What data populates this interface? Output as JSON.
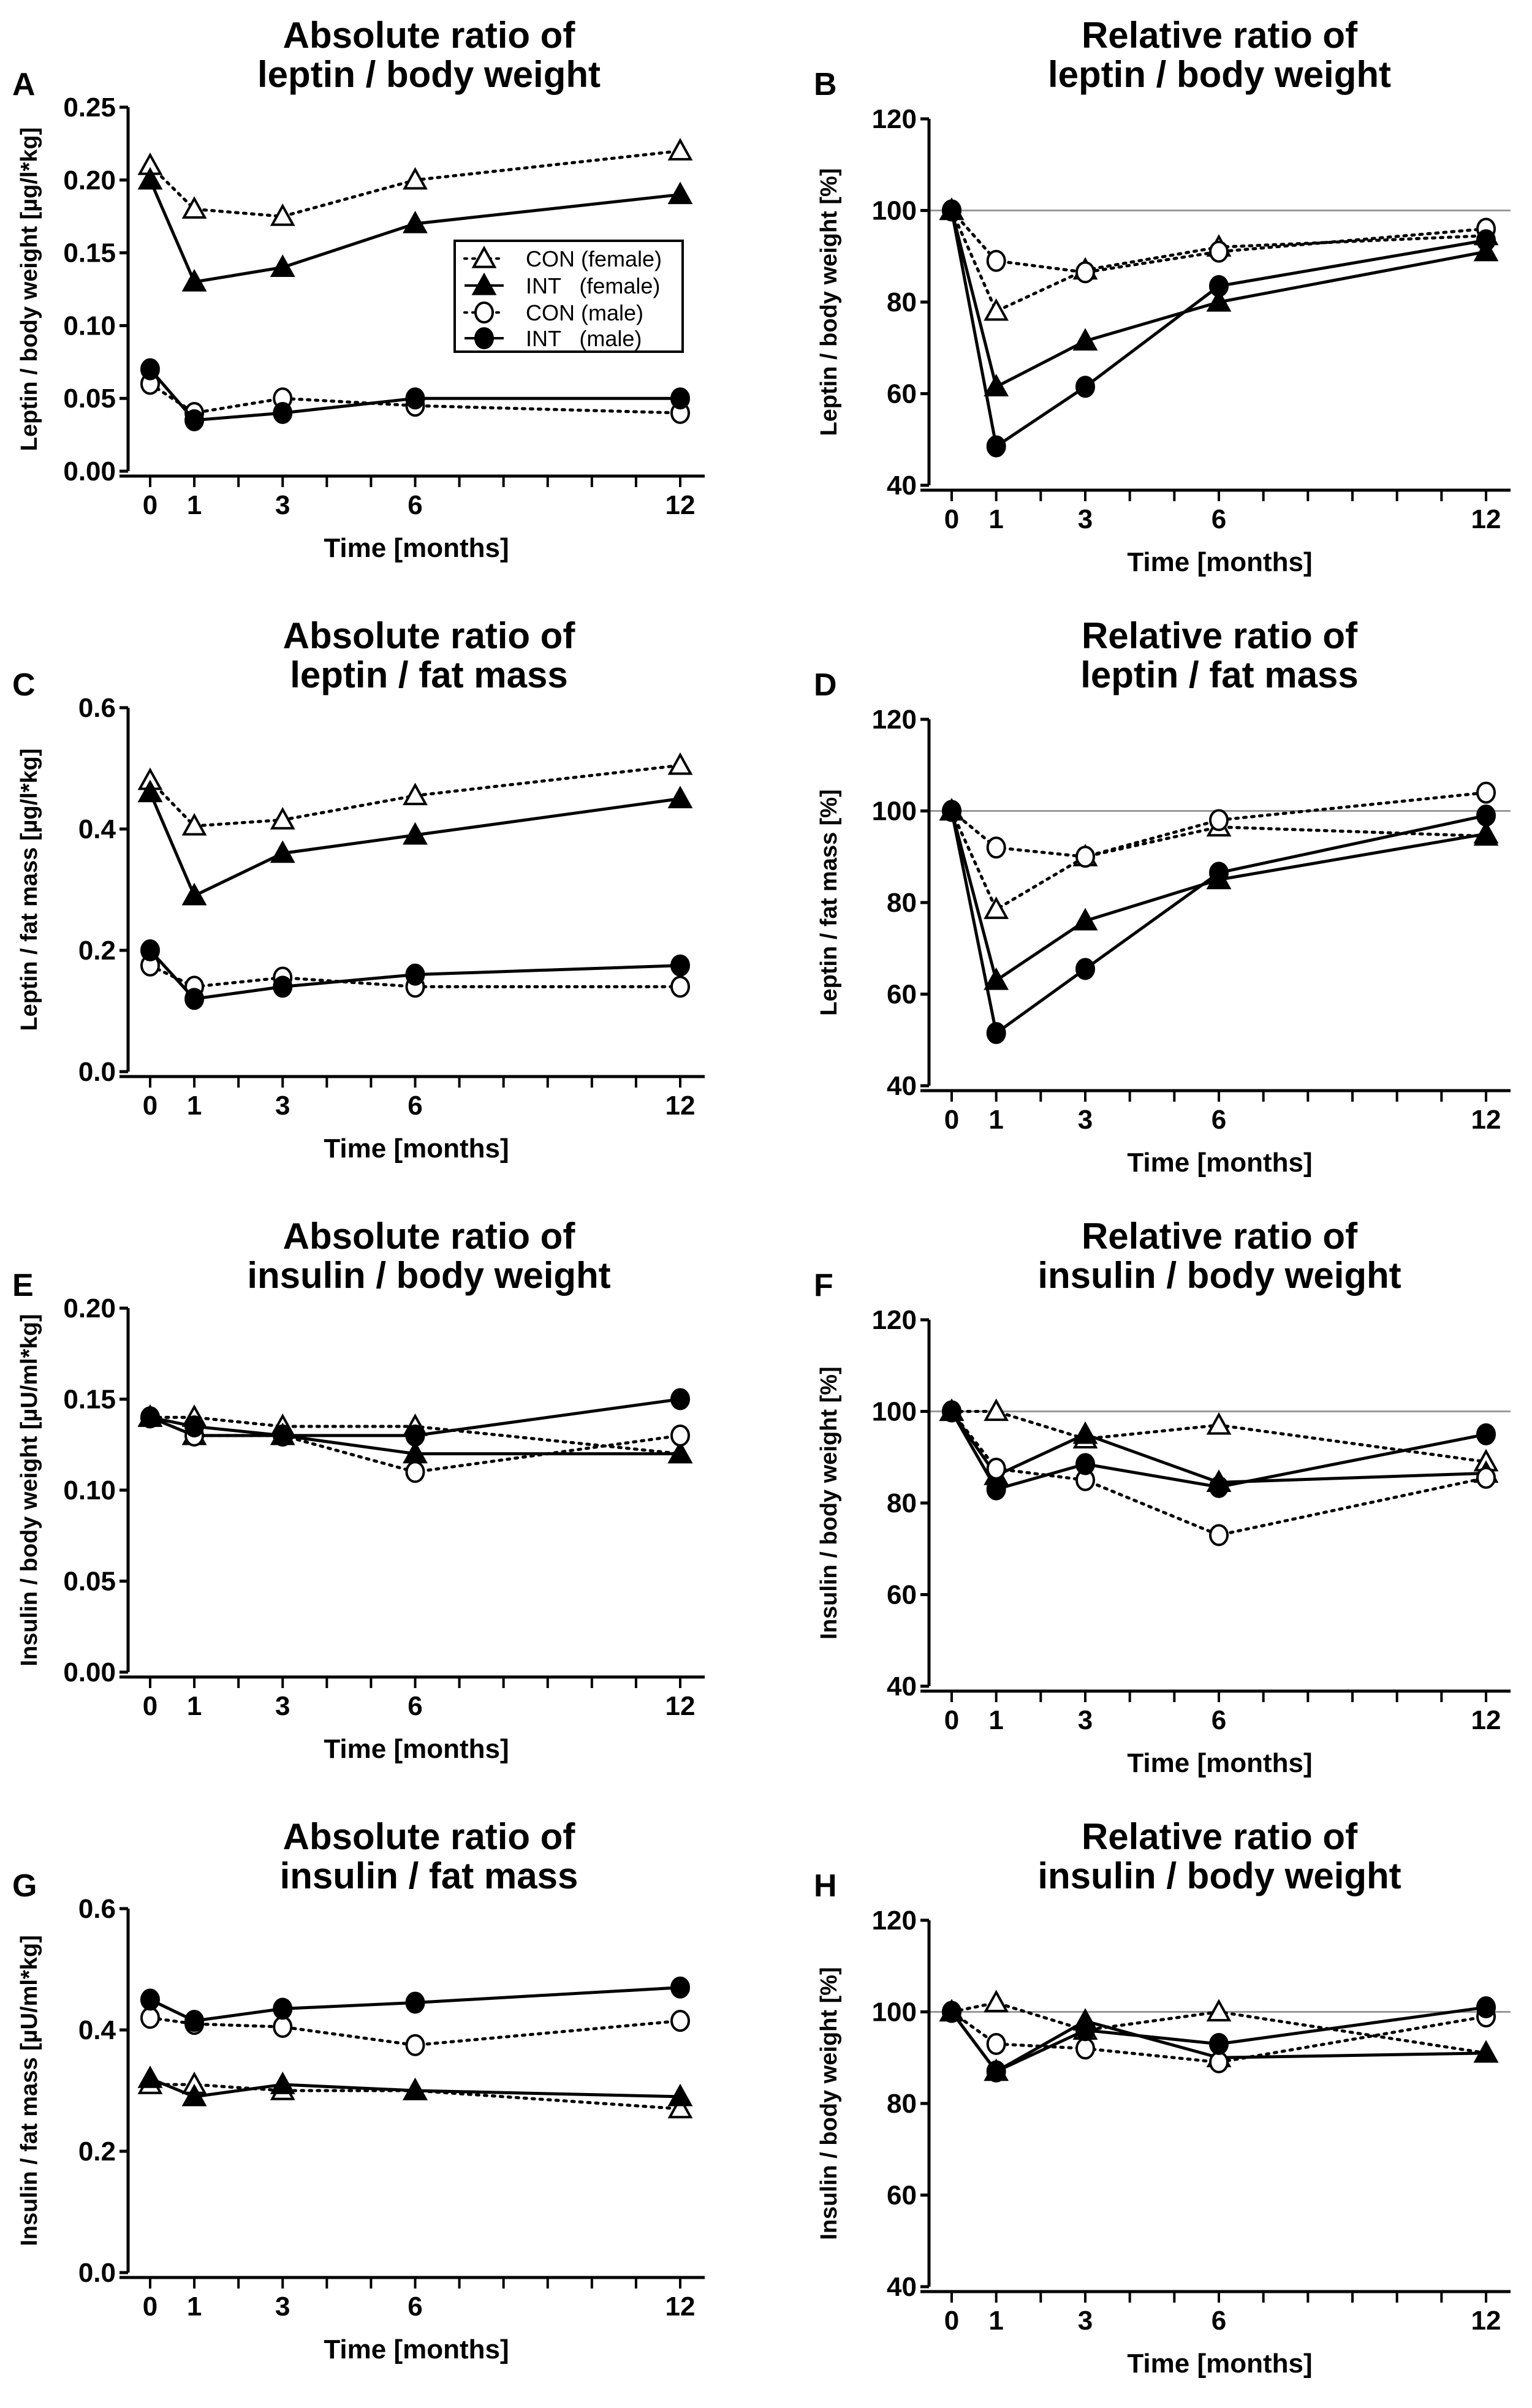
{
  "legend": [
    "CON (female)",
    "INT   (female)",
    "CON (male)",
    "INT   (male)"
  ],
  "chart_data": [
    {
      "panel": "A",
      "type": "line",
      "title": [
        "Absolute ratio of",
        "leptin / body weight"
      ],
      "ylabel": "Leptin / body weight [µg/l*kg]",
      "xlabel": "Time [months]",
      "x": [
        0,
        1,
        3,
        6,
        12
      ],
      "xtick_labels": [
        "0",
        "1",
        "3",
        "6",
        "12"
      ],
      "ylim": [
        0,
        0.25
      ],
      "yticks": [
        0,
        0.05,
        0.1,
        0.15,
        0.2,
        0.25
      ],
      "ytick_labels": [
        "0.00",
        "0.05",
        "0.10",
        "0.15",
        "0.20",
        "0.25"
      ],
      "reference_line": null,
      "legend_position": "center-right",
      "series": [
        {
          "name": "CON (female)",
          "values": [
            0.21,
            0.18,
            0.175,
            0.2,
            0.22
          ]
        },
        {
          "name": "INT (female)",
          "values": [
            0.2,
            0.13,
            0.14,
            0.17,
            0.19
          ]
        },
        {
          "name": "CON (male)",
          "values": [
            0.06,
            0.04,
            0.05,
            0.045,
            0.04
          ]
        },
        {
          "name": "INT (male)",
          "values": [
            0.07,
            0.035,
            0.04,
            0.05,
            0.05
          ]
        }
      ]
    },
    {
      "panel": "B",
      "type": "line",
      "title": [
        "Relative ratio of",
        "leptin / body weight"
      ],
      "ylabel": "Leptin / body weight [%]",
      "xlabel": "Time [months]",
      "x": [
        0,
        1,
        3,
        6,
        12
      ],
      "xtick_labels": [
        "0",
        "1",
        "3",
        "6",
        "12"
      ],
      "ylim": [
        40,
        120
      ],
      "yticks": [
        40,
        60,
        80,
        100,
        120
      ],
      "ytick_labels": [
        "40",
        "60",
        "80",
        "100",
        "120"
      ],
      "reference_line": 100,
      "series": [
        {
          "name": "CON (female)",
          "values": [
            100,
            78,
            87,
            92,
            94.5
          ]
        },
        {
          "name": "INT (female)",
          "values": [
            100,
            61.5,
            71.5,
            80,
            91
          ]
        },
        {
          "name": "CON (male)",
          "values": [
            100,
            89,
            86.5,
            91,
            96
          ]
        },
        {
          "name": "INT (male)",
          "values": [
            100,
            48.5,
            61.5,
            83.5,
            93.5
          ]
        }
      ]
    },
    {
      "panel": "C",
      "type": "line",
      "title": [
        "Absolute ratio of",
        "leptin / fat mass"
      ],
      "ylabel": "Leptin / fat mass [µg/l*kg]",
      "xlabel": "Time [months]",
      "x": [
        0,
        1,
        3,
        6,
        12
      ],
      "xtick_labels": [
        "0",
        "1",
        "3",
        "6",
        "12"
      ],
      "ylim": [
        0,
        0.6
      ],
      "yticks": [
        0,
        0.2,
        0.4,
        0.6
      ],
      "ytick_labels": [
        "0.0",
        "0.2",
        "0.4",
        "0.6"
      ],
      "reference_line": null,
      "series": [
        {
          "name": "CON (female)",
          "values": [
            0.48,
            0.405,
            0.415,
            0.455,
            0.505
          ]
        },
        {
          "name": "INT (female)",
          "values": [
            0.46,
            0.29,
            0.36,
            0.39,
            0.45
          ]
        },
        {
          "name": "CON (male)",
          "values": [
            0.175,
            0.14,
            0.155,
            0.14,
            0.14
          ]
        },
        {
          "name": "INT (male)",
          "values": [
            0.2,
            0.12,
            0.14,
            0.16,
            0.175
          ]
        }
      ]
    },
    {
      "panel": "D",
      "type": "line",
      "title": [
        "Relative ratio of",
        "leptin / fat mass"
      ],
      "ylabel": "Leptin / fat mass [%]",
      "xlabel": "Time [months]",
      "x": [
        0,
        1,
        3,
        6,
        12
      ],
      "xtick_labels": [
        "0",
        "1",
        "3",
        "6",
        "12"
      ],
      "ylim": [
        40,
        120
      ],
      "yticks": [
        40,
        60,
        80,
        100,
        120
      ],
      "ytick_labels": [
        "40",
        "60",
        "80",
        "100",
        "120"
      ],
      "reference_line": 100,
      "series": [
        {
          "name": "CON (female)",
          "values": [
            100,
            78.5,
            90,
            96.5,
            94.5
          ]
        },
        {
          "name": "INT (female)",
          "values": [
            100,
            63,
            76,
            85,
            95
          ]
        },
        {
          "name": "CON (male)",
          "values": [
            100,
            92,
            90,
            98,
            104
          ]
        },
        {
          "name": "INT (male)",
          "values": [
            100,
            51.5,
            65.5,
            86.5,
            99
          ]
        }
      ]
    },
    {
      "panel": "E",
      "type": "line",
      "title": [
        "Absolute ratio of",
        "insulin / body weight"
      ],
      "ylabel": "Insulin / body weight [µU/ml*kg]",
      "xlabel": "Time [months]",
      "x": [
        0,
        1,
        3,
        6,
        12
      ],
      "xtick_labels": [
        "0",
        "1",
        "3",
        "6",
        "12"
      ],
      "ylim": [
        0,
        0.2
      ],
      "yticks": [
        0,
        0.05,
        0.1,
        0.15,
        0.2
      ],
      "ytick_labels": [
        "0.00",
        "0.05",
        "0.10",
        "0.15",
        "0.20"
      ],
      "reference_line": null,
      "series": [
        {
          "name": "CON (female)",
          "values": [
            0.14,
            0.14,
            0.135,
            0.135,
            0.12
          ]
        },
        {
          "name": "INT (female)",
          "values": [
            0.14,
            0.13,
            0.13,
            0.12,
            0.12
          ]
        },
        {
          "name": "CON (male)",
          "values": [
            0.14,
            0.13,
            0.13,
            0.11,
            0.13
          ]
        },
        {
          "name": "INT (male)",
          "values": [
            0.14,
            0.135,
            0.13,
            0.13,
            0.15
          ]
        }
      ]
    },
    {
      "panel": "F",
      "type": "line",
      "title": [
        "Relative ratio of",
        "insulin / body weight"
      ],
      "ylabel": "Insulin / body weight [%]",
      "xlabel": "Time [months]",
      "x": [
        0,
        1,
        3,
        6,
        12
      ],
      "xtick_labels": [
        "0",
        "1",
        "3",
        "6",
        "12"
      ],
      "ylim": [
        40,
        120
      ],
      "yticks": [
        40,
        60,
        80,
        100,
        120
      ],
      "ytick_labels": [
        "40",
        "60",
        "80",
        "100",
        "120"
      ],
      "reference_line": 100,
      "series": [
        {
          "name": "CON (female)",
          "values": [
            100,
            100,
            94,
            97,
            89
          ]
        },
        {
          "name": "INT (female)",
          "values": [
            100,
            86,
            95,
            84.5,
            86.5
          ]
        },
        {
          "name": "CON (male)",
          "values": [
            100,
            87.5,
            85,
            73,
            85.5
          ]
        },
        {
          "name": "INT (male)",
          "values": [
            100,
            83,
            88.5,
            83.5,
            95
          ]
        }
      ]
    },
    {
      "panel": "G",
      "type": "line",
      "title": [
        "Absolute ratio of",
        "insulin / fat mass"
      ],
      "ylabel": "Insulin / fat mass [µU/ml*kg]",
      "xlabel": "Time [months]",
      "x": [
        0,
        1,
        3,
        6,
        12
      ],
      "xtick_labels": [
        "0",
        "1",
        "3",
        "6",
        "12"
      ],
      "ylim": [
        0,
        0.6
      ],
      "yticks": [
        0,
        0.2,
        0.4,
        0.6
      ],
      "ytick_labels": [
        "0.0",
        "0.2",
        "0.4",
        "0.6"
      ],
      "reference_line": null,
      "series": [
        {
          "name": "CON (female)",
          "values": [
            0.31,
            0.31,
            0.3,
            0.3,
            0.27
          ]
        },
        {
          "name": "INT (female)",
          "values": [
            0.32,
            0.29,
            0.31,
            0.3,
            0.29
          ]
        },
        {
          "name": "CON (male)",
          "values": [
            0.42,
            0.41,
            0.405,
            0.375,
            0.415
          ]
        },
        {
          "name": "INT (male)",
          "values": [
            0.45,
            0.415,
            0.435,
            0.445,
            0.47
          ]
        }
      ]
    },
    {
      "panel": "H",
      "type": "line",
      "title": [
        "Relative ratio of",
        "insulin / body weight"
      ],
      "ylabel": "Insulin / body weight [%]",
      "xlabel": "Time [months]",
      "x": [
        0,
        1,
        3,
        6,
        12
      ],
      "xtick_labels": [
        "0",
        "1",
        "3",
        "6",
        "12"
      ],
      "ylim": [
        40,
        120
      ],
      "yticks": [
        40,
        60,
        80,
        100,
        120
      ],
      "ytick_labels": [
        "40",
        "60",
        "80",
        "100",
        "120"
      ],
      "reference_line": 100,
      "series": [
        {
          "name": "CON (female)",
          "values": [
            100,
            102,
            96,
            100,
            91
          ]
        },
        {
          "name": "INT (female)",
          "values": [
            100,
            87,
            98,
            90,
            91
          ]
        },
        {
          "name": "CON (male)",
          "values": [
            100,
            93,
            92,
            89,
            99
          ]
        },
        {
          "name": "INT (male)",
          "values": [
            100,
            87,
            96,
            93,
            101
          ]
        }
      ]
    }
  ]
}
